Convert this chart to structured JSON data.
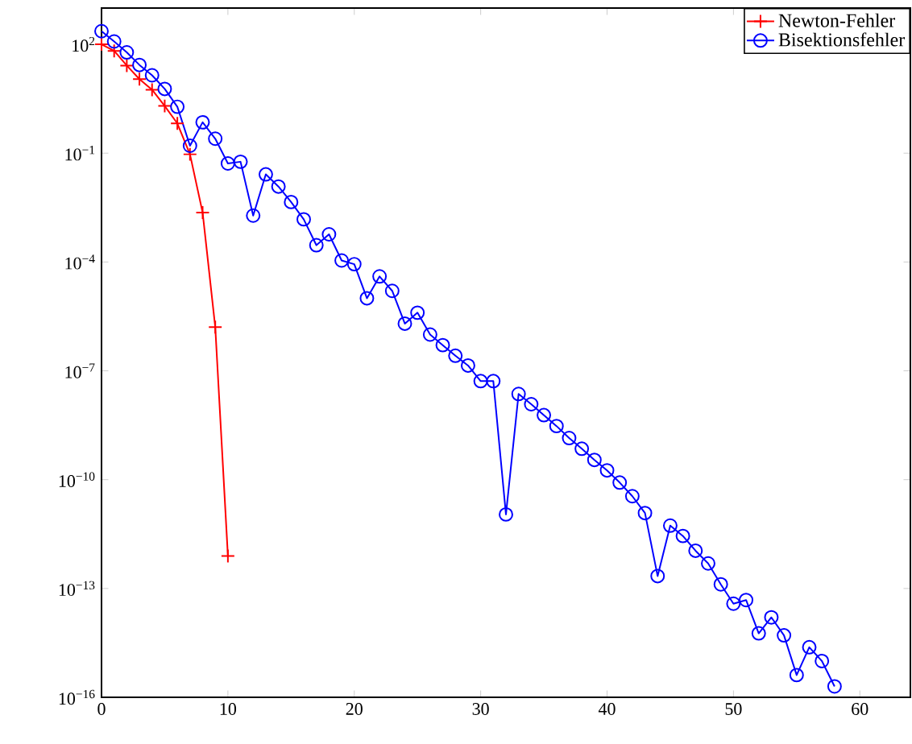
{
  "chart_data": {
    "type": "line",
    "log": "y",
    "legend": "top right",
    "grid": false,
    "xlim": [
      0,
      64
    ],
    "ylim": [
      1e-16,
      1000.0
    ],
    "xticks": [
      0,
      10,
      20,
      30,
      40,
      50,
      60
    ],
    "yticks": [
      {
        "value": 100.0,
        "label": "10$^{2}$"
      },
      {
        "value": 0.1,
        "label": "10$^{−1}$"
      },
      {
        "value": 0.0001,
        "label": "10$^{−4}$"
      },
      {
        "value": 1e-07,
        "label": "10$^{−7}$"
      },
      {
        "value": 1e-10,
        "label": "10$^{−10}$"
      },
      {
        "value": 1e-13,
        "label": "10$^{−13}$"
      },
      {
        "value": 1e-16,
        "label": "10$^{−16}$"
      }
    ],
    "series": [
      {
        "name": "Newton-Fehler",
        "color": "#ff0000",
        "marker": "cross",
        "line_style": "solid",
        "x": [
          0,
          1,
          2,
          3,
          4,
          5,
          6,
          7,
          8,
          9,
          10
        ],
        "values": [
          100.0,
          66.0,
          26.0,
          11.0,
          5.6,
          2.0,
          0.66,
          0.093,
          0.0023,
          1.6e-06,
          7.9e-13
        ]
      },
      {
        "name": "Bisektionsfehler",
        "color": "#0000ff",
        "marker": "circle",
        "line_style": "solid",
        "x": [
          0,
          1,
          2,
          3,
          4,
          5,
          6,
          7,
          8,
          9,
          10,
          11,
          12,
          13,
          14,
          15,
          16,
          17,
          18,
          19,
          20,
          21,
          22,
          23,
          24,
          25,
          26,
          27,
          28,
          29,
          30,
          31,
          32,
          33,
          34,
          35,
          36,
          37,
          38,
          39,
          40,
          41,
          42,
          43,
          44,
          45,
          46,
          47,
          48,
          49,
          50,
          51,
          52,
          53,
          54,
          55,
          56,
          57,
          58
        ],
        "values": [
          230.0,
          120.0,
          60.0,
          27.0,
          14.0,
          5.9,
          1.9,
          0.16,
          0.71,
          0.25,
          0.052,
          0.058,
          0.0019,
          0.026,
          0.012,
          0.0045,
          0.0015,
          0.00029,
          0.00058,
          0.00011,
          8.7e-05,
          1e-05,
          4e-05,
          1.6e-05,
          2e-06,
          4e-06,
          1e-06,
          5.1e-07,
          2.6e-07,
          1.4e-07,
          5.2e-08,
          5.2e-08,
          1.1e-11,
          2.3e-08,
          1.2e-08,
          6e-09,
          3e-09,
          1.4e-09,
          7.1e-10,
          3.5e-10,
          1.8e-10,
          8.3e-11,
          3.5e-11,
          1.2e-11,
          2.2e-13,
          5.4e-12,
          2.8e-12,
          1.1e-12,
          4.9e-13,
          1.3e-13,
          3.8e-14,
          4.8e-14,
          5.8e-15,
          1.6e-14,
          5.1e-15,
          4.1e-16,
          2.4e-15,
          1e-15,
          2e-16
        ]
      }
    ]
  }
}
